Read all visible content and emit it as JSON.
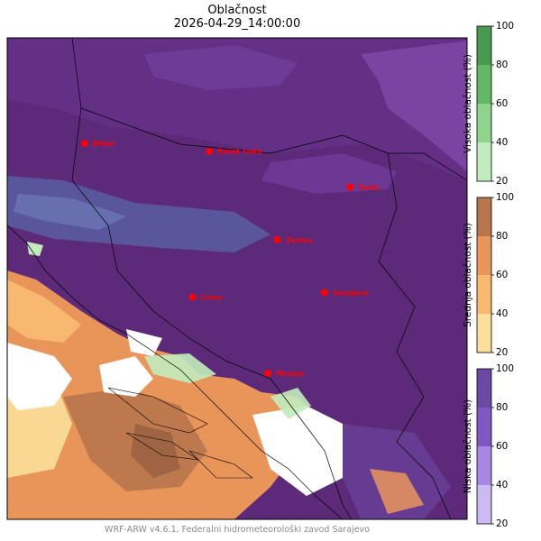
{
  "title": "Oblačnost",
  "subtitle": "2026-04-29_14:00:00",
  "credit": "WRF-ARW v4.6.1, Federalni hidrometeorološki zavod Sarajevo",
  "cities": [
    {
      "name": "Bihać",
      "lon": 15.87,
      "lat": 44.82
    },
    {
      "name": "Banja Luka",
      "lon": 17.19,
      "lat": 44.77
    },
    {
      "name": "Tuzla",
      "lon": 18.68,
      "lat": 44.54
    },
    {
      "name": "Zenica",
      "lon": 17.91,
      "lat": 44.2
    },
    {
      "name": "Livno",
      "lon": 17.01,
      "lat": 43.83
    },
    {
      "name": "Sarajevo",
      "lon": 18.41,
      "lat": 43.86
    },
    {
      "name": "Mostar",
      "lon": 17.81,
      "lat": 43.34
    }
  ],
  "map_extent": {
    "lon_min": 15.05,
    "lon_max": 19.92,
    "lat_max": 45.5,
    "lat_min": 42.4
  },
  "colorbars": [
    {
      "label": "Visoka oblačnost (%)",
      "ticks": [
        "100",
        "80",
        "60",
        "40",
        "20"
      ],
      "colors": [
        "#4a9950",
        "#62b865",
        "#8fd48c",
        "#c2ecbd"
      ]
    },
    {
      "label": "Srednja oblačnost (%)",
      "ticks": [
        "100",
        "80",
        "60",
        "40",
        "20"
      ],
      "colors": [
        "#b8754b",
        "#e9955a",
        "#f8b870",
        "#fbdf9a"
      ]
    },
    {
      "label": "Niska oblačnost (%)",
      "ticks": [
        "100",
        "80",
        "60",
        "40",
        "20"
      ],
      "colors": [
        "#6a4aa2",
        "#8058c4",
        "#a886e4",
        "#cdb9f4"
      ]
    }
  ],
  "colors": {
    "city_marker": "#ff0000",
    "cloud_base": "#5c2a78"
  }
}
